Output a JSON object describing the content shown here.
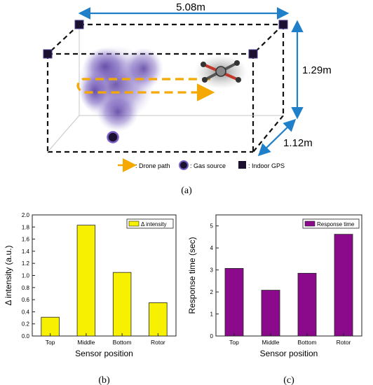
{
  "diagram": {
    "width_label": "5.08m",
    "height_label": "1.29m",
    "depth_label": "1.12m",
    "legend": {
      "drone_path": ": Drone path",
      "gas_source": ": Gas source",
      "indoor_gps": ": Indoor GPS"
    },
    "caption": "(a)",
    "colors": {
      "dimension": "#1f7fc9",
      "path": "#f5a800",
      "plume": "#6b4fb0"
    }
  },
  "chart_data": [
    {
      "type": "bar",
      "categories": [
        "Top",
        "Middle",
        "Bottom",
        "Rotor"
      ],
      "values": [
        0.31,
        1.83,
        1.05,
        0.55
      ],
      "xlabel": "Sensor position",
      "ylabel": "Δ intensity (a.u.)",
      "ylim": [
        0,
        2.0
      ],
      "yticks": [
        0.0,
        0.2,
        0.4,
        0.6,
        0.8,
        1.0,
        1.2,
        1.4,
        1.6,
        1.8,
        2.0
      ],
      "legend": "Δ intensity",
      "legend_position": "top-right",
      "color": "#f7f000",
      "caption": "(b)"
    },
    {
      "type": "bar",
      "categories": [
        "Top",
        "Middle",
        "Bottom",
        "Rotor"
      ],
      "values": [
        3.07,
        2.08,
        2.85,
        4.62
      ],
      "xlabel": "Sensor position",
      "ylabel": "Response time (sec)",
      "ylim": [
        0,
        5.5
      ],
      "yticks": [
        0,
        1,
        2,
        3,
        4,
        5
      ],
      "legend": "Response time",
      "legend_position": "top-right",
      "color": "#8b0a8b",
      "caption": "(c)"
    }
  ]
}
